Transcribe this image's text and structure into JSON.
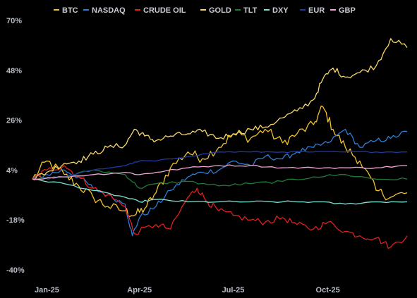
{
  "chart_data": {
    "type": "line",
    "title": "",
    "xlabel": "",
    "ylabel": "",
    "y_unit": "%",
    "ylim": [
      -40,
      70
    ],
    "y_ticks": [
      "70%",
      "48%",
      "26%",
      "4%",
      "-18%",
      "-40%"
    ],
    "x_ticks": [
      "Jan-25",
      "Apr-25",
      "Jul-25",
      "Oct-25"
    ],
    "grid": false,
    "legend_position": "top",
    "series": [
      {
        "name": "BTC",
        "color": "#f2c12e",
        "x": [
          "2025-01-01",
          "2025-01-15",
          "2025-02-01",
          "2025-02-15",
          "2025-03-01",
          "2025-03-15",
          "2025-04-01",
          "2025-04-10",
          "2025-04-20",
          "2025-05-01",
          "2025-05-15",
          "2025-06-01",
          "2025-06-15",
          "2025-07-01",
          "2025-07-15",
          "2025-08-01",
          "2025-08-15",
          "2025-09-01",
          "2025-09-15",
          "2025-10-01",
          "2025-10-10",
          "2025-10-20",
          "2025-11-01",
          "2025-11-15",
          "2025-12-01",
          "2025-12-15",
          "2025-12-31"
        ],
        "values": [
          0,
          8,
          2,
          -3,
          -8,
          -12,
          -14,
          -16,
          -13,
          -6,
          5,
          12,
          9,
          14,
          20,
          18,
          22,
          16,
          20,
          24,
          32,
          22,
          14,
          8,
          -5,
          -8,
          -6
        ]
      },
      {
        "name": "NASDAQ",
        "color": "#2e7dd6",
        "x": [
          "2025-01-01",
          "2025-01-15",
          "2025-02-01",
          "2025-02-15",
          "2025-03-01",
          "2025-03-15",
          "2025-04-01",
          "2025-04-08",
          "2025-04-15",
          "2025-05-01",
          "2025-05-15",
          "2025-06-01",
          "2025-06-15",
          "2025-07-01",
          "2025-07-15",
          "2025-08-01",
          "2025-08-15",
          "2025-09-01",
          "2025-09-15",
          "2025-10-01",
          "2025-10-15",
          "2025-11-01",
          "2025-11-15",
          "2025-12-01",
          "2025-12-15",
          "2025-12-31"
        ],
        "values": [
          0,
          2,
          4,
          1,
          -4,
          -7,
          -11,
          -25,
          -17,
          -12,
          -5,
          1,
          3,
          4,
          8,
          6,
          10,
          9,
          12,
          14,
          16,
          22,
          14,
          17,
          18,
          21
        ]
      },
      {
        "name": "CRUDE OIL",
        "color": "#e01f1f",
        "x": [
          "2025-01-01",
          "2025-01-15",
          "2025-02-01",
          "2025-02-15",
          "2025-03-01",
          "2025-03-15",
          "2025-04-01",
          "2025-04-10",
          "2025-05-01",
          "2025-05-15",
          "2025-06-01",
          "2025-06-10",
          "2025-06-20",
          "2025-07-01",
          "2025-07-15",
          "2025-08-01",
          "2025-08-15",
          "2025-09-01",
          "2025-09-15",
          "2025-10-01",
          "2025-10-15",
          "2025-11-01",
          "2025-11-15",
          "2025-12-01",
          "2025-12-15",
          "2025-12-31"
        ],
        "values": [
          0,
          4,
          6,
          1,
          -4,
          -7,
          -12,
          -24,
          -20,
          -22,
          -8,
          -4,
          -10,
          -14,
          -16,
          -18,
          -19,
          -17,
          -20,
          -22,
          -19,
          -23,
          -25,
          -26,
          -30,
          -25
        ]
      },
      {
        "name": "GOLD",
        "color": "#f8d66a",
        "x": [
          "2025-01-01",
          "2025-01-15",
          "2025-02-01",
          "2025-02-15",
          "2025-03-01",
          "2025-03-15",
          "2025-04-01",
          "2025-04-10",
          "2025-04-20",
          "2025-05-01",
          "2025-05-15",
          "2025-06-01",
          "2025-06-15",
          "2025-07-01",
          "2025-07-15",
          "2025-08-01",
          "2025-08-15",
          "2025-09-01",
          "2025-09-15",
          "2025-10-01",
          "2025-10-10",
          "2025-10-20",
          "2025-11-01",
          "2025-11-15",
          "2025-12-01",
          "2025-12-15",
          "2025-12-31"
        ],
        "values": [
          0,
          3,
          7,
          8,
          11,
          14,
          15,
          22,
          19,
          17,
          19,
          20,
          21,
          18,
          20,
          22,
          23,
          27,
          30,
          35,
          44,
          49,
          45,
          47,
          50,
          62,
          58
        ]
      },
      {
        "name": "TLT",
        "color": "#1f7a3a",
        "x": [
          "2025-01-01",
          "2025-02-01",
          "2025-03-01",
          "2025-04-01",
          "2025-04-15",
          "2025-05-01",
          "2025-06-01",
          "2025-07-01",
          "2025-08-01",
          "2025-09-01",
          "2025-10-01",
          "2025-11-01",
          "2025-12-01",
          "2025-12-31"
        ],
        "values": [
          0,
          1,
          4,
          2,
          -4,
          -2,
          -1,
          -3,
          -2,
          -1,
          1,
          2,
          0,
          0
        ]
      },
      {
        "name": "DXY",
        "color": "#7ee2d0",
        "x": [
          "2025-01-01",
          "2025-02-01",
          "2025-03-01",
          "2025-04-01",
          "2025-04-15",
          "2025-05-01",
          "2025-06-01",
          "2025-07-01",
          "2025-08-01",
          "2025-09-01",
          "2025-10-01",
          "2025-11-01",
          "2025-12-01",
          "2025-12-31"
        ],
        "values": [
          0,
          -2,
          -5,
          -8,
          -10,
          -9,
          -10,
          -10,
          -10,
          -10,
          -10,
          -11,
          -10,
          -10
        ]
      },
      {
        "name": "EUR",
        "color": "#1e3aa0",
        "x": [
          "2025-01-01",
          "2025-02-01",
          "2025-03-01",
          "2025-04-01",
          "2025-04-15",
          "2025-05-01",
          "2025-06-01",
          "2025-07-01",
          "2025-08-01",
          "2025-09-01",
          "2025-10-01",
          "2025-11-01",
          "2025-12-01",
          "2025-12-31"
        ],
        "values": [
          0,
          1,
          4,
          6,
          8,
          8,
          10,
          12,
          12,
          12,
          12,
          12,
          12,
          12
        ]
      },
      {
        "name": "GBP",
        "color": "#f0a6d4",
        "x": [
          "2025-01-01",
          "2025-02-01",
          "2025-03-01",
          "2025-04-01",
          "2025-04-15",
          "2025-05-01",
          "2025-06-01",
          "2025-07-01",
          "2025-08-01",
          "2025-09-01",
          "2025-10-01",
          "2025-11-01",
          "2025-12-01",
          "2025-12-31"
        ],
        "values": [
          0,
          1,
          2,
          3,
          2,
          3,
          5,
          6,
          6,
          5,
          5,
          5,
          5,
          6
        ]
      }
    ]
  }
}
